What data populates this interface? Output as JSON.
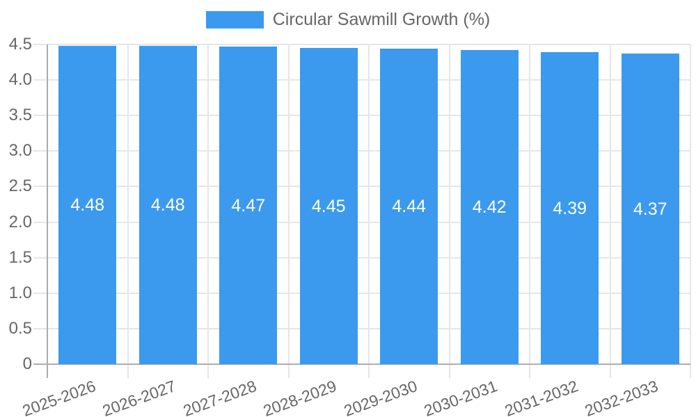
{
  "legend": {
    "label": "Circular Sawmill Growth (%)"
  },
  "chart_data": {
    "type": "bar",
    "title": "Circular Sawmill Growth (%)",
    "series_name": "Circular Sawmill Growth (%)",
    "categories": [
      "2025-2026",
      "2026-2027",
      "2027-2028",
      "2028-2029",
      "2029-2030",
      "2030-2031",
      "2031-2032",
      "2032-2033"
    ],
    "values": [
      4.48,
      4.48,
      4.47,
      4.45,
      4.44,
      4.42,
      4.39,
      4.37
    ],
    "value_labels": [
      "4.48",
      "4.48",
      "4.47",
      "4.45",
      "4.44",
      "4.42",
      "4.39",
      "4.37"
    ],
    "xlabel": "",
    "ylabel": "",
    "ylim": [
      0,
      4.5
    ],
    "ytick_labels": [
      "0",
      "0.5",
      "1.0",
      "1.5",
      "2.0",
      "2.5",
      "3.0",
      "3.5",
      "4.0",
      "4.5"
    ],
    "grid": true,
    "legend_position": "top",
    "colors": {
      "bar": "#3B9AEE",
      "grid": "#E6E6E6",
      "axis": "#ACACAC",
      "tick_text": "#666666",
      "value_text": "#FFFFFF",
      "legend_text": "#666666",
      "background": "#FFFFFF"
    }
  }
}
